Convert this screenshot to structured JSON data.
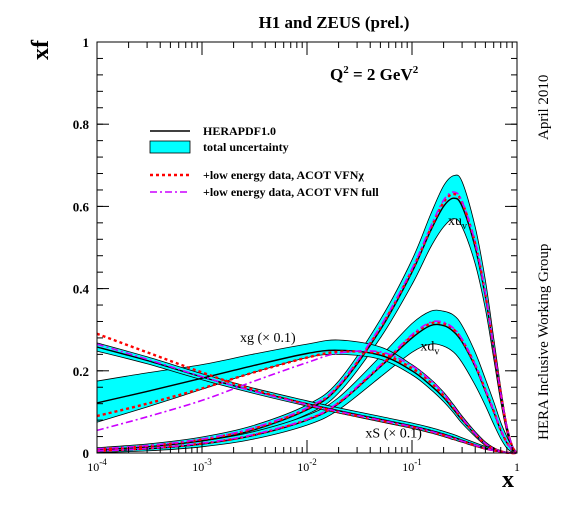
{
  "chart_data": {
    "type": "line",
    "title": "H1 and ZEUS (prel.)",
    "xlabel": "x",
    "ylabel": "xf",
    "x_scale": "log",
    "xlim": [
      0.0001,
      1
    ],
    "ylim": [
      0,
      1
    ],
    "grid": false,
    "legend_position": "top-left",
    "side_text": [
      "April 2010",
      "HERA Inclusive Working Group"
    ],
    "x_ticks": [
      {
        "value": 0.0001,
        "base": "10",
        "exp": "-4"
      },
      {
        "value": 0.001,
        "base": "10",
        "exp": "-3"
      },
      {
        "value": 0.01,
        "base": "10",
        "exp": "-2"
      },
      {
        "value": 0.1,
        "base": "10",
        "exp": "-1"
      },
      {
        "value": 1,
        "base": "1",
        "exp": ""
      }
    ],
    "y_ticks": [
      {
        "value": 0,
        "label": "0"
      },
      {
        "value": 0.2,
        "label": "0.2"
      },
      {
        "value": 0.4,
        "label": "0.4"
      },
      {
        "value": 0.6,
        "label": "0.6"
      },
      {
        "value": 0.8,
        "label": "0.8"
      },
      {
        "value": 1,
        "label": "1"
      }
    ],
    "annotation_q2": {
      "main": "Q",
      "sup": "2",
      "rest": " = 2 GeV",
      "sup2": "2"
    },
    "legend": [
      {
        "label": "HERAPDF1.0",
        "style": "solid",
        "color": "#000000"
      },
      {
        "label": "total uncertainty",
        "style": "band",
        "color": "#00ffff"
      },
      {
        "label": "+low energy data, ACOT VFNχ",
        "style": "dashed",
        "color": "#ff0000"
      },
      {
        "label": "+low energy data, ACOT VFN full",
        "style": "dashdot",
        "color": "#cc00ff"
      }
    ],
    "curve_labels": [
      {
        "key": "xuv",
        "main": "xu",
        "sub": "v",
        "x": 0.22,
        "y": 0.555
      },
      {
        "key": "xdv",
        "main": "xd",
        "sub": "v",
        "x": 0.12,
        "y": 0.25
      },
      {
        "key": "xg",
        "main": "xg (× 0.1)",
        "sub": "",
        "x": 0.0023,
        "y": 0.27
      },
      {
        "key": "xs",
        "main": "xS (× 0.1)",
        "sub": "",
        "x": 0.036,
        "y": 0.038
      }
    ],
    "x": [
      0.0001,
      0.0003,
      0.001,
      0.003,
      0.01,
      0.02,
      0.05,
      0.1,
      0.15,
      0.2,
      0.25,
      0.3,
      0.4,
      0.5,
      0.6,
      0.7,
      0.8,
      0.9,
      0.98
    ],
    "series": [
      {
        "key": "xuv",
        "central": [
          0.008,
          0.015,
          0.03,
          0.055,
          0.105,
          0.16,
          0.3,
          0.44,
          0.54,
          0.6,
          0.62,
          0.6,
          0.5,
          0.38,
          0.25,
          0.14,
          0.06,
          0.015,
          0.002
        ],
        "band_low": [
          0.003,
          0.009,
          0.022,
          0.045,
          0.094,
          0.146,
          0.28,
          0.41,
          0.5,
          0.55,
          0.57,
          0.55,
          0.46,
          0.35,
          0.23,
          0.125,
          0.05,
          0.01,
          0.0
        ],
        "band_high": [
          0.013,
          0.022,
          0.039,
          0.066,
          0.117,
          0.175,
          0.325,
          0.47,
          0.58,
          0.65,
          0.675,
          0.66,
          0.55,
          0.42,
          0.28,
          0.16,
          0.07,
          0.02,
          0.004
        ],
        "red": [
          0.009,
          0.017,
          0.033,
          0.058,
          0.108,
          0.163,
          0.305,
          0.445,
          0.545,
          0.61,
          0.63,
          0.61,
          0.51,
          0.385,
          0.255,
          0.145,
          0.062,
          0.016,
          0.002
        ],
        "magenta": [
          0.01,
          0.018,
          0.034,
          0.06,
          0.11,
          0.165,
          0.308,
          0.448,
          0.55,
          0.615,
          0.635,
          0.612,
          0.512,
          0.387,
          0.256,
          0.146,
          0.063,
          0.017,
          0.002
        ]
      },
      {
        "key": "xdv",
        "central": [
          0.004,
          0.01,
          0.022,
          0.042,
          0.08,
          0.12,
          0.21,
          0.28,
          0.31,
          0.31,
          0.295,
          0.27,
          0.21,
          0.15,
          0.1,
          0.055,
          0.025,
          0.008,
          0.001
        ],
        "band_low": [
          0.001,
          0.005,
          0.015,
          0.033,
          0.068,
          0.105,
          0.185,
          0.245,
          0.265,
          0.26,
          0.245,
          0.22,
          0.165,
          0.115,
          0.07,
          0.035,
          0.012,
          0.002,
          0.0
        ],
        "band_high": [
          0.008,
          0.015,
          0.029,
          0.051,
          0.092,
          0.135,
          0.235,
          0.315,
          0.345,
          0.345,
          0.335,
          0.31,
          0.245,
          0.18,
          0.125,
          0.075,
          0.04,
          0.015,
          0.003
        ],
        "red": [
          0.005,
          0.011,
          0.023,
          0.043,
          0.081,
          0.122,
          0.212,
          0.285,
          0.315,
          0.315,
          0.3,
          0.275,
          0.214,
          0.153,
          0.102,
          0.056,
          0.026,
          0.008,
          0.001
        ],
        "magenta": [
          0.005,
          0.011,
          0.024,
          0.044,
          0.082,
          0.123,
          0.214,
          0.288,
          0.318,
          0.318,
          0.303,
          0.277,
          0.215,
          0.154,
          0.103,
          0.057,
          0.026,
          0.008,
          0.001
        ]
      },
      {
        "key": "xg",
        "central": [
          0.122,
          0.15,
          0.182,
          0.212,
          0.242,
          0.25,
          0.238,
          0.2,
          0.165,
          0.135,
          0.105,
          0.08,
          0.045,
          0.022,
          0.01,
          0.004,
          0.001,
          0.0,
          0.0
        ],
        "band_low": [
          0.075,
          0.112,
          0.155,
          0.195,
          0.232,
          0.24,
          0.228,
          0.19,
          0.155,
          0.125,
          0.097,
          0.072,
          0.04,
          0.018,
          0.008,
          0.003,
          0.0,
          0.0,
          0.0
        ],
        "band_high": [
          0.175,
          0.195,
          0.215,
          0.24,
          0.265,
          0.275,
          0.258,
          0.215,
          0.18,
          0.148,
          0.117,
          0.09,
          0.052,
          0.027,
          0.013,
          0.006,
          0.002,
          0.0,
          0.0
        ],
        "red": [
          0.09,
          0.12,
          0.157,
          0.195,
          0.232,
          0.246,
          0.242,
          0.206,
          0.172,
          0.14,
          0.109,
          0.083,
          0.046,
          0.022,
          0.01,
          0.004,
          0.001,
          0.0,
          0.0
        ],
        "magenta": [
          0.055,
          0.088,
          0.128,
          0.173,
          0.22,
          0.243,
          0.246,
          0.212,
          0.177,
          0.145,
          0.112,
          0.085,
          0.047,
          0.023,
          0.01,
          0.004,
          0.001,
          0.0,
          0.0
        ]
      },
      {
        "key": "xs",
        "central": [
          0.258,
          0.225,
          0.185,
          0.152,
          0.12,
          0.103,
          0.082,
          0.066,
          0.055,
          0.046,
          0.038,
          0.031,
          0.02,
          0.012,
          0.007,
          0.003,
          0.001,
          0.0,
          0.0
        ],
        "band_low": [
          0.248,
          0.217,
          0.178,
          0.146,
          0.114,
          0.097,
          0.076,
          0.06,
          0.049,
          0.04,
          0.032,
          0.026,
          0.016,
          0.009,
          0.005,
          0.002,
          0.0,
          0.0,
          0.0
        ],
        "band_high": [
          0.268,
          0.234,
          0.193,
          0.159,
          0.127,
          0.11,
          0.089,
          0.073,
          0.062,
          0.053,
          0.045,
          0.037,
          0.025,
          0.016,
          0.01,
          0.005,
          0.002,
          0.0,
          0.0
        ],
        "red": [
          0.29,
          0.245,
          0.196,
          0.155,
          0.118,
          0.1,
          0.079,
          0.063,
          0.052,
          0.043,
          0.035,
          0.029,
          0.018,
          0.011,
          0.006,
          0.003,
          0.001,
          0.0,
          0.0
        ],
        "magenta": [
          0.265,
          0.228,
          0.186,
          0.151,
          0.118,
          0.101,
          0.08,
          0.064,
          0.053,
          0.044,
          0.036,
          0.029,
          0.019,
          0.011,
          0.006,
          0.003,
          0.001,
          0.0,
          0.0
        ]
      }
    ]
  }
}
